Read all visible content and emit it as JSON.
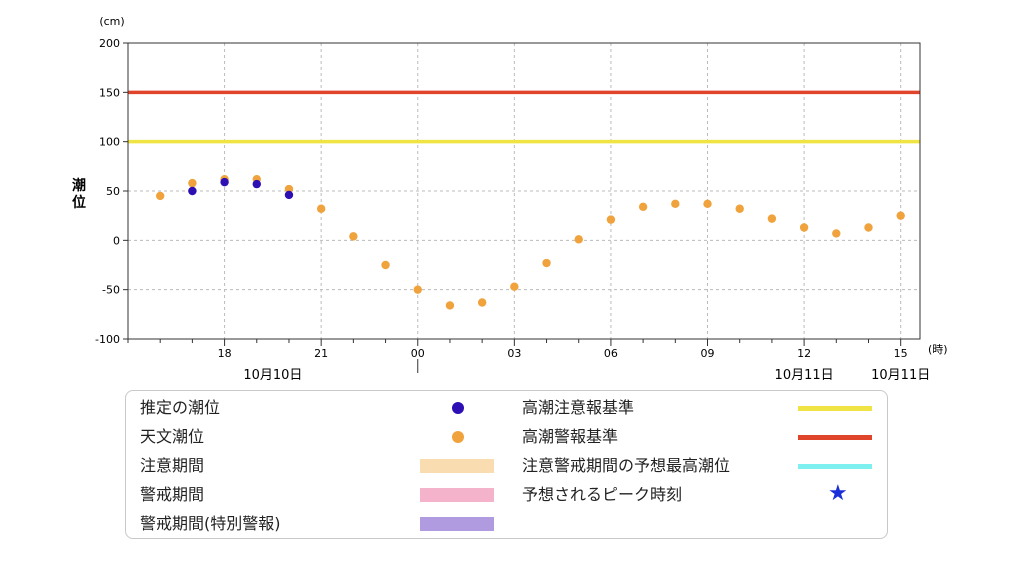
{
  "chart_data": {
    "type": "scatter",
    "y_unit": "(cm)",
    "x_unit": "(時)",
    "ylabel": "潮位",
    "ylim": [
      -100,
      200
    ],
    "y_ticks": [
      -100,
      -50,
      0,
      50,
      100,
      150,
      200
    ],
    "x_tick_labels": [
      "18",
      "21",
      "00",
      "03",
      "06",
      "09",
      "12",
      "15"
    ],
    "x_tick_hours": [
      18,
      21,
      24,
      27,
      30,
      33,
      36,
      39
    ],
    "xlim_hours": [
      15,
      39.6
    ],
    "date_labels": [
      {
        "label": "10月10日",
        "hour": 19.5
      },
      {
        "label": "10月11日",
        "hour": 36
      },
      {
        "label": "10月11日",
        "hour": 39
      }
    ],
    "date_separator_hour": 24,
    "thresholds": [
      {
        "name": "高潮警報基準",
        "value": 150,
        "color": "#e0452c"
      },
      {
        "name": "高潮注意報基準",
        "value": 100,
        "color": "#f0e445"
      }
    ],
    "series": [
      {
        "name": "天文潮位",
        "color": "#f0a23c",
        "x_hours": [
          16,
          17,
          18,
          19,
          20,
          21,
          22,
          23,
          24,
          25,
          26,
          27,
          28,
          29,
          30,
          31,
          32,
          33,
          34,
          35,
          36,
          37,
          38,
          39
        ],
        "values": [
          45,
          58,
          62,
          62,
          52,
          32,
          4,
          -25,
          -50,
          -66,
          -63,
          -47,
          -23,
          1,
          21,
          34,
          37,
          37,
          32,
          22,
          13,
          7,
          13,
          25
        ]
      },
      {
        "name": "推定の潮位",
        "color": "#2e0fb4",
        "x_hours": [
          17,
          18,
          19,
          20
        ],
        "values": [
          50,
          59,
          57,
          46
        ]
      }
    ]
  },
  "legend": {
    "items": [
      {
        "label": "推定の潮位",
        "kind": "dot",
        "color": "#2e0fb4"
      },
      {
        "label": "天文潮位",
        "kind": "dot",
        "color": "#f0a23c"
      },
      {
        "label": "注意期間",
        "kind": "band",
        "color": "#f9ddb0"
      },
      {
        "label": "警戒期間",
        "kind": "band",
        "color": "#f5b3cb"
      },
      {
        "label": "警戒期間(特別警報)",
        "kind": "band",
        "color": "#b09ae0"
      },
      {
        "label": "高潮注意報基準",
        "kind": "line",
        "color": "#f0e445"
      },
      {
        "label": "高潮警報基準",
        "kind": "line",
        "color": "#e0452c"
      },
      {
        "label": "注意警戒期間の予想最高潮位",
        "kind": "line",
        "color": "#7ff0f0"
      },
      {
        "label": "予想されるピーク時刻",
        "kind": "star",
        "color": "#1a2fd8",
        "symbol": "★"
      }
    ]
  }
}
